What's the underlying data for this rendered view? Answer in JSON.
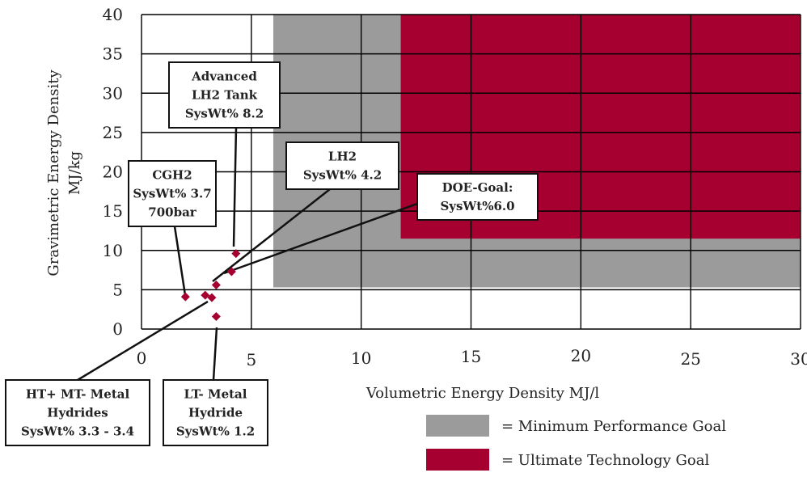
{
  "chart_data": {
    "type": "scatter",
    "xlabel": "Volumetric Energy Density   MJ/l",
    "ylabel_line1": "Gravimetric Energy Density",
    "ylabel_line2": "MJ/kg",
    "xlim": [
      0,
      30
    ],
    "ylim": [
      0,
      40
    ],
    "x_ticks": [
      0,
      5,
      10,
      15,
      20,
      25,
      30
    ],
    "y_ticks": [
      0,
      5,
      10,
      15,
      20,
      25,
      30,
      35,
      40
    ],
    "grid": true,
    "colors": {
      "min_goal": "#9b9b9b",
      "ultimate_goal": "#a50030",
      "points": "#a50030",
      "grid": "#000000"
    },
    "regions": [
      {
        "name": "Minimum Performance Goal",
        "x_from": 6.0,
        "x_to": 30,
        "y_from": 5.3,
        "y_to": 40
      },
      {
        "name": "Ultimate Technology Goal",
        "x_from": 11.8,
        "x_to": 30,
        "y_from": 11.5,
        "y_to": 40
      }
    ],
    "points": [
      {
        "x": 4.3,
        "y": 9.6
      },
      {
        "x": 4.1,
        "y": 7.3
      },
      {
        "x": 3.4,
        "y": 5.6
      },
      {
        "x": 2.9,
        "y": 4.3
      },
      {
        "x": 3.2,
        "y": 4.0
      },
      {
        "x": 2.0,
        "y": 4.1
      },
      {
        "x": 3.4,
        "y": 1.6
      }
    ],
    "annotations": [
      {
        "lines": [
          "Advanced",
          "LH2 Tank",
          "SysWt% 8.2"
        ]
      },
      {
        "lines": [
          "CGH2",
          "SysWt% 3.7",
          "700bar"
        ]
      },
      {
        "lines": [
          "LH2",
          "SysWt% 4.2"
        ]
      },
      {
        "lines": [
          "DOE-Goal:",
          "SysWt%6.0"
        ]
      },
      {
        "lines": [
          "HT+ MT- Metal",
          "Hydrides",
          "SysWt% 3.3 - 3.4"
        ]
      },
      {
        "lines": [
          "LT- Metal",
          "Hydride",
          "SysWt% 1.2"
        ]
      }
    ],
    "legend": [
      {
        "label": "=   Minimum Performance Goal",
        "color": "#9b9b9b"
      },
      {
        "label": "=   Ultimate Technology Goal",
        "color": "#a50030"
      }
    ]
  }
}
